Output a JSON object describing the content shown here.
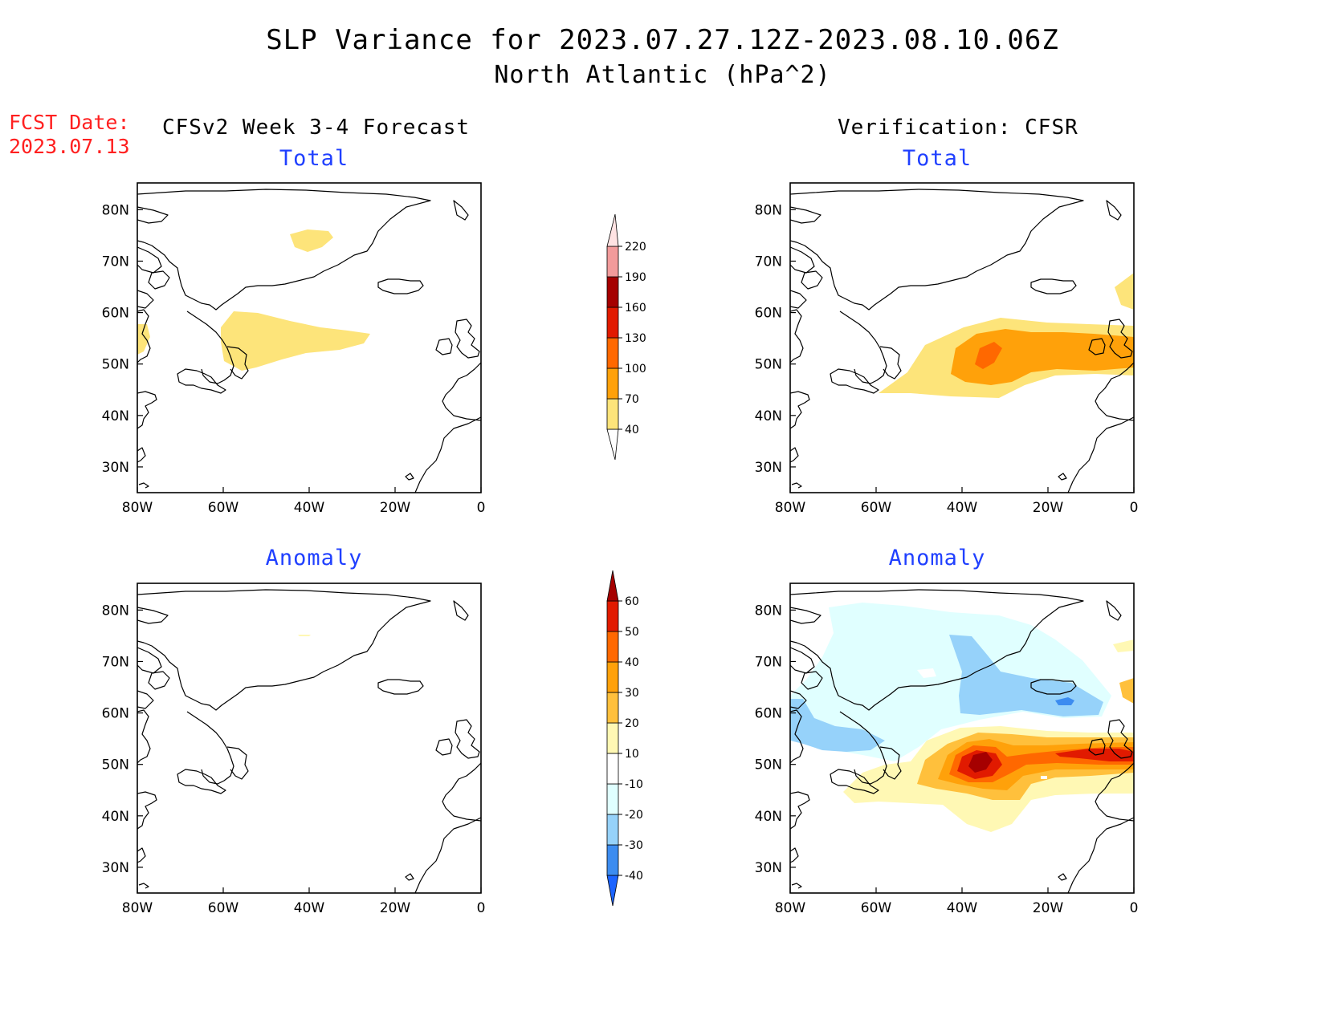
{
  "header": {
    "title": "SLP Variance for 2023.07.27.12Z-2023.08.10.06Z",
    "subtitle": "North Atlantic (hPa^2)",
    "fcst_label": "FCST Date:",
    "fcst_date": "2023.07.13",
    "left_title": "CFSv2 Week 3-4 Forecast",
    "right_title": "Verification: CFSR"
  },
  "panels": {
    "fc_total_label": "Total",
    "ver_total_label": "Total",
    "fc_anom_label": "Anomaly",
    "ver_anom_label": "Anomaly"
  },
  "axes": {
    "lat_ticks": [
      "80N",
      "70N",
      "60N",
      "50N",
      "40N",
      "30N"
    ],
    "lon_ticks": [
      "80W",
      "60W",
      "40W",
      "20W",
      "0"
    ]
  },
  "colorbars": {
    "total": {
      "labels": [
        "40",
        "70",
        "100",
        "130",
        "160",
        "190",
        "220"
      ],
      "colors": [
        "#fde47a",
        "#ffa10a",
        "#ff6800",
        "#e11a00",
        "#a50000",
        "#f29b9b",
        "#ffe3e3"
      ]
    },
    "anomaly": {
      "labels": [
        "-40",
        "-30",
        "-20",
        "-10",
        "10",
        "20",
        "30",
        "40",
        "50",
        "60"
      ],
      "colors": [
        "#1c64ff",
        "#3c8cf0",
        "#96d2fa",
        "#e0ffff",
        "#ffffff",
        "#fff8b4",
        "#ffc03c",
        "#ffa10a",
        "#ff6800",
        "#e11a00",
        "#a50000"
      ]
    }
  },
  "colors": {
    "yellow": "#fde47a",
    "orange": "#ffa10a",
    "dark_orange": "#ff6800",
    "red": "#e11a00",
    "dark_red": "#a50000",
    "pale_yellow": "#fff8b4",
    "light_orange": "#ffc03c",
    "pale_cyan": "#e0ffff",
    "light_blue": "#96d2fa",
    "blue": "#3c8cf0",
    "title_blue": "#2040ff",
    "fcst_red": "#ff2020"
  }
}
